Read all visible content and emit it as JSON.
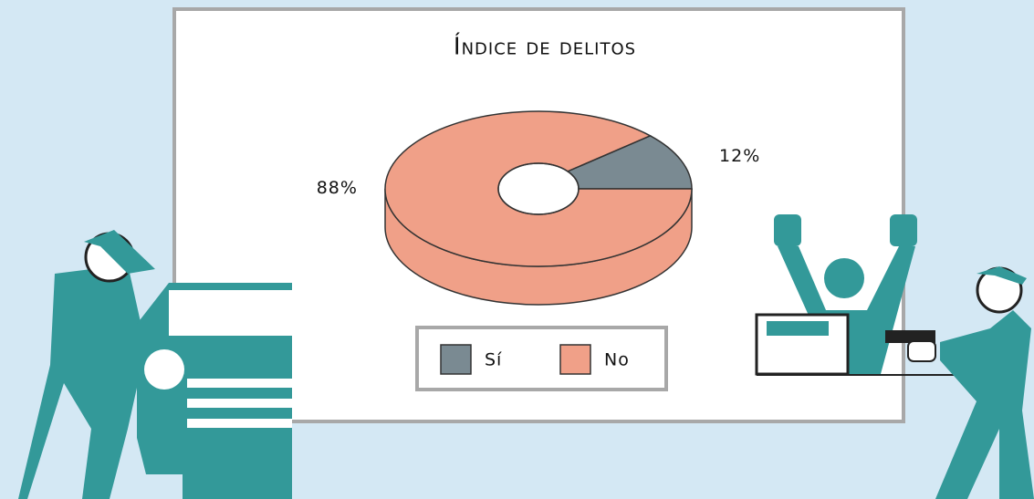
{
  "chart_data": {
    "type": "pie",
    "title": "Índice de delitos",
    "categories": [
      "Sí",
      "No"
    ],
    "values": [
      12,
      88
    ],
    "value_labels": [
      "12%",
      "88%"
    ],
    "colors": [
      "#7a8a92",
      "#f0a088"
    ],
    "legend": "bottom"
  }
}
